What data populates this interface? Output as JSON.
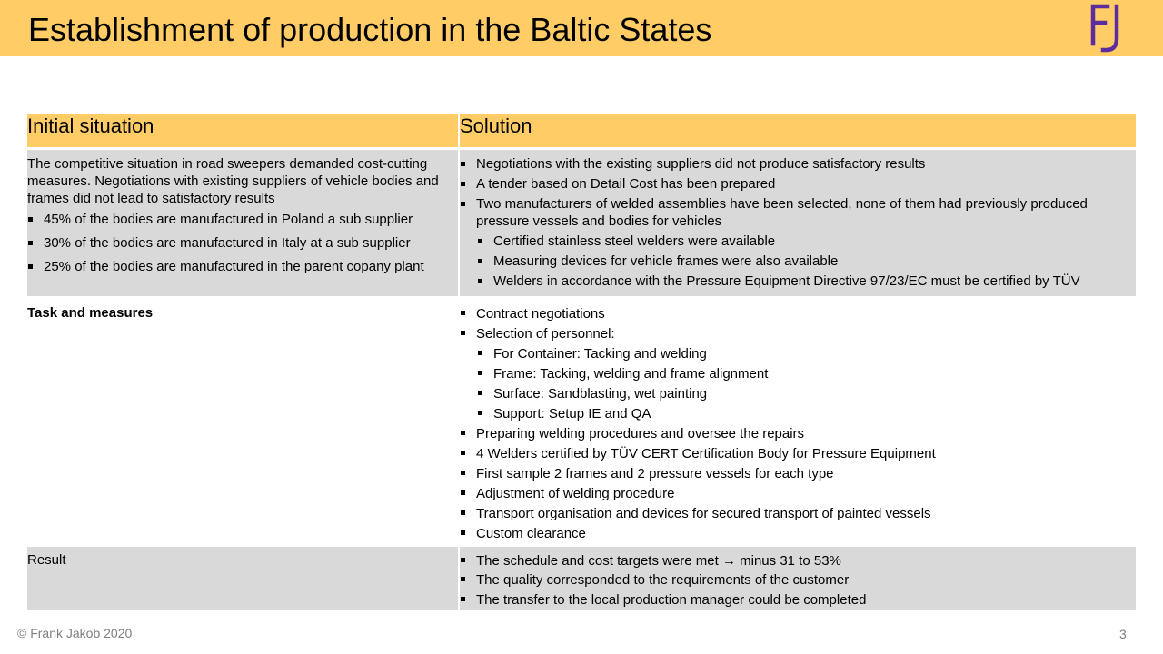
{
  "header": {
    "title": "Establishment of production in the Baltic States",
    "logo_text": "FJ"
  },
  "colors": {
    "accent": "#FFCC66",
    "row_gray": "#D9D9D9",
    "logo": "#5B2D9E",
    "footer": "#7F7F7F"
  },
  "table": {
    "col1_header": "Initial situation",
    "col2_header": "Solution",
    "row1": {
      "intro": "The competitive situation in road sweepers demanded cost-cutting measures. Negotiations with existing suppliers of vehicle bodies and frames did not lead to satisfactory results",
      "left_bullets": [
        "45% of the bodies are manufactured  in Poland a sub supplier",
        "30% of the bodies are manufactured  in Italy  at a sub supplier",
        "25% of the bodies are manufactured  in the parent copany plant"
      ],
      "right_bullets": [
        "Negotiations with the existing suppliers did not produce satisfactory results",
        "A tender based on Detail Cost has been prepared",
        "Two manufacturers  of welded assemblies have been selected, none of them had previously produced pressure vessels and bodies for vehicles"
      ],
      "right_sub": [
        "Certified stainless steel welders were available",
        "Measuring devices for vehicle frames were also available",
        "Welders in accordance with the Pressure Equipment Directive 97/23/EC must  be certified by TÜV"
      ]
    },
    "row2": {
      "label": "Task and measures",
      "b1": "Contract  negotiations",
      "b2": "Selection of personnel:",
      "sub": [
        "For Container: Tacking and welding",
        "Frame: Tacking, welding and frame alignment",
        "Surface: Sandblasting, wet painting",
        "Support: Setup IE and QA"
      ],
      "rest": [
        "Preparing welding procedures and oversee the repairs",
        "4 Welders certified by TÜV  CERT Certification Body for Pressure Equipment",
        "First sample 2 frames and 2 pressure vessels for each type",
        "Adjustment  of welding procedure",
        "Transport  organisation and devices for secured transport  of painted vessels",
        "Custom clearance"
      ]
    },
    "row3": {
      "label": "Result",
      "bullets": [
        "The schedule and cost targets were met → minus 31 to 53%",
        "The quality corresponded to the requirements of the customer",
        "The transfer to the local production manager could be completed"
      ]
    }
  },
  "footer": {
    "copyright": "© Frank  Jakob 2020",
    "page_number": "3"
  }
}
